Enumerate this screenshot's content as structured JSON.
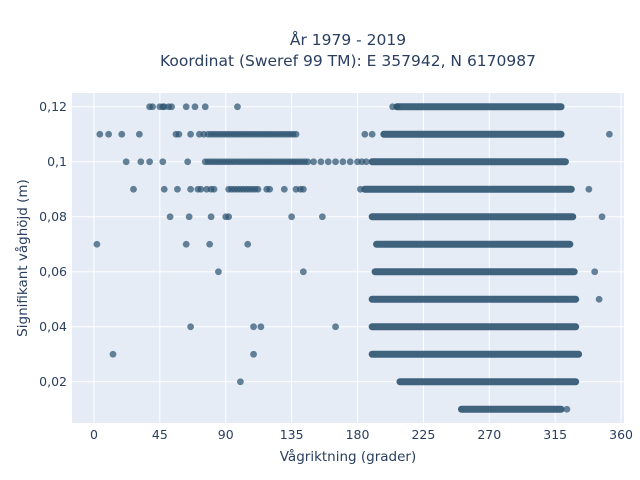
{
  "chart_data": {
    "type": "scatter",
    "title_line1": "År 1979 - 2019",
    "title_line2": "Koordinat (Sweref 99 TM): E 357942, N 6170987",
    "xlabel": "Vågriktning (grader)",
    "ylabel": "Signifikant våghöjd (m)",
    "xlim": [
      -15,
      362
    ],
    "ylim": [
      0.005,
      0.125
    ],
    "x_ticks": [
      0,
      45,
      90,
      135,
      180,
      225,
      270,
      315,
      360
    ],
    "x_tick_labels": [
      "0",
      "45",
      "90",
      "135",
      "180",
      "225",
      "270",
      "315",
      "360"
    ],
    "y_ticks": [
      0.02,
      0.04,
      0.06,
      0.08,
      0.1,
      0.12
    ],
    "y_tick_labels": [
      "0,02",
      "0,04",
      "0,06",
      "0,08",
      "0,1",
      "0,12"
    ],
    "grid": true,
    "legend": "none",
    "colors": {
      "marker": "#2e5470",
      "plot_background": "#e5ecf6",
      "grid": "#ffffff",
      "text": "#2a3f5f"
    },
    "bands": [
      {
        "y": 0.12,
        "x_start": 207,
        "x_end": 319
      },
      {
        "y": 0.11,
        "x_start": 198,
        "x_end": 319
      },
      {
        "y": 0.1,
        "x_start": 190,
        "x_end": 322
      },
      {
        "y": 0.09,
        "x_start": 185,
        "x_end": 326
      },
      {
        "y": 0.08,
        "x_start": 190,
        "x_end": 327
      },
      {
        "y": 0.07,
        "x_start": 193,
        "x_end": 325
      },
      {
        "y": 0.06,
        "x_start": 192,
        "x_end": 328
      },
      {
        "y": 0.05,
        "x_start": 190,
        "x_end": 329
      },
      {
        "y": 0.04,
        "x_start": 190,
        "x_end": 329
      },
      {
        "y": 0.03,
        "x_start": 190,
        "x_end": 331
      },
      {
        "y": 0.02,
        "x_start": 209,
        "x_end": 329
      },
      {
        "y": 0.01,
        "x_start": 251,
        "x_end": 319
      }
    ],
    "points": [
      {
        "y": 0.12,
        "x": [
          38,
          40,
          45,
          47,
          48,
          51,
          53,
          63,
          69,
          76,
          98,
          204,
          207
        ]
      },
      {
        "y": 0.11,
        "x": [
          4,
          10,
          19,
          31,
          56,
          58,
          66,
          72,
          75,
          78,
          80,
          82,
          84,
          86,
          88,
          90,
          92,
          94,
          96,
          98,
          100,
          102,
          104,
          106,
          108,
          110,
          112,
          114,
          116,
          118,
          120,
          122,
          124,
          126,
          128,
          130,
          132,
          134,
          136,
          138,
          185,
          190
        ]
      },
      {
        "y": 0.1,
        "x": [
          22,
          32,
          38,
          47,
          64,
          76,
          78,
          80,
          82,
          84,
          86,
          88,
          90,
          92,
          94,
          96,
          98,
          100,
          102,
          104,
          106,
          108,
          110,
          112,
          114,
          116,
          118,
          120,
          122,
          124,
          126,
          128,
          130,
          132,
          134,
          136,
          138,
          140,
          142,
          144,
          146,
          150,
          155,
          160,
          165,
          170,
          175,
          180,
          183,
          186
        ]
      },
      {
        "y": 0.09,
        "x": [
          27,
          48,
          57,
          66,
          71,
          73,
          77,
          80,
          82,
          92,
          94,
          96,
          98,
          100,
          102,
          104,
          106,
          108,
          110,
          112,
          118,
          120,
          130,
          138,
          141,
          143,
          182,
          338
        ]
      },
      {
        "y": 0.08,
        "x": [
          52,
          65,
          80,
          90,
          92,
          135,
          156,
          347
        ]
      },
      {
        "y": 0.07,
        "x": [
          2,
          63,
          79,
          105
        ]
      },
      {
        "y": 0.06,
        "x": [
          85,
          143,
          342
        ]
      },
      {
        "y": 0.05,
        "x": [
          345
        ]
      },
      {
        "y": 0.04,
        "x": [
          66,
          109,
          114,
          165
        ]
      },
      {
        "y": 0.03,
        "x": [
          13,
          109
        ]
      },
      {
        "y": 0.02,
        "x": [
          100
        ]
      },
      {
        "y": 0.01,
        "x": [
          323
        ]
      },
      {
        "y": 0.11,
        "x": [
          352
        ]
      }
    ]
  }
}
